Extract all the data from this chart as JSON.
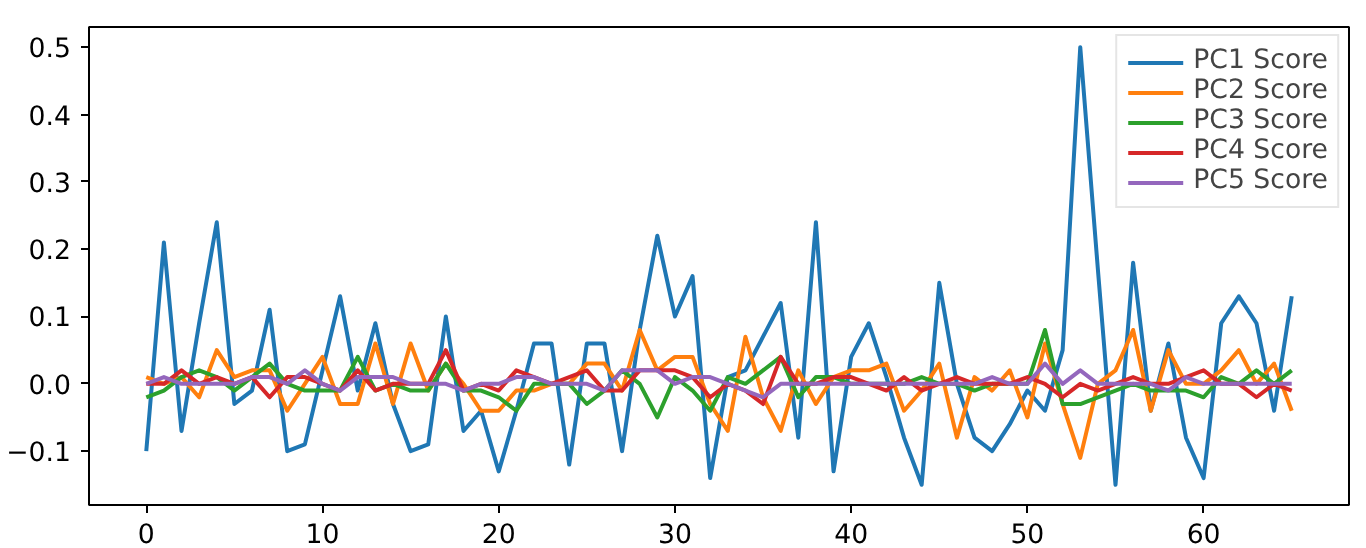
{
  "chart_data": {
    "type": "line",
    "x": [
      0,
      1,
      2,
      3,
      4,
      5,
      6,
      7,
      8,
      9,
      10,
      11,
      12,
      13,
      14,
      15,
      16,
      17,
      18,
      19,
      20,
      21,
      22,
      23,
      24,
      25,
      26,
      27,
      28,
      29,
      30,
      31,
      32,
      33,
      34,
      35,
      36,
      37,
      38,
      39,
      40,
      41,
      42,
      43,
      44,
      45,
      46,
      47,
      48,
      49,
      50,
      51,
      52,
      53,
      54,
      55,
      56,
      57,
      58,
      59,
      60,
      61,
      62,
      63,
      64,
      65
    ],
    "series": [
      {
        "name": "PC1 Score",
        "color": "#1f77b4",
        "values": [
          -0.1,
          0.21,
          -0.07,
          0.09,
          0.24,
          -0.03,
          -0.01,
          0.11,
          -0.1,
          -0.09,
          0.02,
          0.13,
          -0.01,
          0.09,
          -0.03,
          -0.1,
          -0.09,
          0.1,
          -0.07,
          -0.04,
          -0.13,
          -0.04,
          0.06,
          0.06,
          -0.12,
          0.06,
          0.06,
          -0.1,
          0.08,
          0.22,
          0.1,
          0.16,
          -0.14,
          0.01,
          0.02,
          0.07,
          0.12,
          -0.08,
          0.24,
          -0.13,
          0.04,
          0.09,
          0.01,
          -0.08,
          -0.15,
          0.15,
          0.0,
          -0.08,
          -0.1,
          -0.06,
          -0.01,
          -0.04,
          0.05,
          0.5,
          0.17,
          -0.15,
          0.18,
          -0.04,
          0.06,
          -0.08,
          -0.14,
          0.09,
          0.13,
          0.09,
          -0.04,
          0.13
        ]
      },
      {
        "name": "PC2 Score",
        "color": "#ff7f0e",
        "values": [
          0.01,
          0.0,
          0.01,
          -0.02,
          0.05,
          0.01,
          0.02,
          0.02,
          -0.04,
          0.0,
          0.04,
          -0.03,
          -0.03,
          0.06,
          -0.03,
          0.06,
          -0.01,
          0.03,
          0.0,
          -0.04,
          -0.04,
          -0.01,
          -0.01,
          0.0,
          0.0,
          0.03,
          0.03,
          -0.01,
          0.08,
          0.02,
          0.04,
          0.04,
          -0.03,
          -0.07,
          0.07,
          -0.02,
          -0.07,
          0.02,
          -0.03,
          0.01,
          0.02,
          0.02,
          0.03,
          -0.04,
          -0.01,
          0.03,
          -0.08,
          0.01,
          -0.01,
          0.02,
          -0.05,
          0.06,
          -0.03,
          -0.11,
          0.0,
          0.02,
          0.08,
          -0.04,
          0.05,
          0.0,
          0.0,
          0.02,
          0.05,
          0.0,
          0.03,
          -0.04
        ]
      },
      {
        "name": "PC3 Score",
        "color": "#2ca02c",
        "values": [
          -0.02,
          -0.01,
          0.01,
          0.02,
          0.01,
          -0.01,
          0.01,
          0.03,
          0.0,
          -0.01,
          -0.01,
          -0.01,
          0.04,
          -0.01,
          0.0,
          -0.01,
          -0.01,
          0.03,
          -0.01,
          -0.01,
          -0.02,
          -0.04,
          0.0,
          0.0,
          0.0,
          -0.03,
          -0.01,
          0.02,
          0.0,
          -0.05,
          0.01,
          -0.01,
          -0.04,
          0.01,
          0.0,
          0.02,
          0.04,
          -0.02,
          0.01,
          0.01,
          0.0,
          0.0,
          0.0,
          0.0,
          0.01,
          0.0,
          0.0,
          -0.01,
          0.0,
          0.0,
          0.0,
          0.08,
          -0.03,
          -0.03,
          -0.02,
          -0.01,
          0.0,
          -0.01,
          -0.01,
          -0.01,
          -0.02,
          0.01,
          0.0,
          0.02,
          0.0,
          0.02
        ]
      },
      {
        "name": "PC4 Score",
        "color": "#d62728",
        "values": [
          0.0,
          0.0,
          0.02,
          0.0,
          0.01,
          0.0,
          0.01,
          -0.02,
          0.01,
          0.01,
          0.0,
          -0.01,
          0.02,
          -0.01,
          0.0,
          0.0,
          0.0,
          0.05,
          -0.01,
          0.0,
          -0.01,
          0.02,
          0.01,
          0.0,
          0.01,
          0.02,
          -0.01,
          -0.01,
          0.02,
          0.02,
          0.02,
          0.01,
          -0.02,
          0.0,
          -0.01,
          -0.03,
          0.04,
          0.0,
          0.0,
          0.01,
          0.01,
          0.0,
          -0.01,
          0.01,
          -0.01,
          0.0,
          0.01,
          0.0,
          0.0,
          0.0,
          0.01,
          0.0,
          -0.02,
          0.0,
          -0.01,
          0.0,
          0.01,
          0.0,
          0.0,
          0.01,
          0.02,
          0.0,
          0.0,
          -0.02,
          0.0,
          -0.01
        ]
      },
      {
        "name": "PC5 Score",
        "color": "#9467bd",
        "values": [
          0.0,
          0.01,
          0.0,
          0.0,
          0.0,
          0.0,
          0.01,
          0.01,
          0.0,
          0.02,
          0.0,
          -0.01,
          0.01,
          0.01,
          0.01,
          0.0,
          0.0,
          0.0,
          -0.01,
          0.0,
          0.0,
          0.01,
          0.01,
          0.0,
          0.0,
          0.0,
          -0.01,
          0.02,
          0.02,
          0.02,
          0.0,
          0.01,
          0.01,
          0.0,
          -0.01,
          -0.02,
          0.0,
          0.0,
          0.0,
          0.0,
          0.0,
          0.0,
          0.0,
          0.0,
          0.0,
          0.0,
          0.0,
          0.0,
          0.01,
          0.0,
          0.0,
          0.03,
          0.0,
          0.02,
          0.0,
          0.0,
          0.0,
          0.0,
          -0.01,
          0.01,
          0.0,
          0.0,
          0.0,
          0.0,
          0.0,
          0.0
        ]
      }
    ],
    "xlim": [
      -3.25,
      68.25
    ],
    "ylim": [
      -0.18,
      0.53
    ],
    "xticks": [
      0,
      10,
      20,
      30,
      40,
      50,
      60
    ],
    "yticks": [
      {
        "value": -0.1,
        "label": "−0.1"
      },
      {
        "value": 0,
        "label": "0.0"
      },
      0.1,
      0.2,
      0.3,
      0.4,
      0.5
    ],
    "legend": "top right",
    "grid": false,
    "line_style": "solid",
    "marker": "none"
  }
}
